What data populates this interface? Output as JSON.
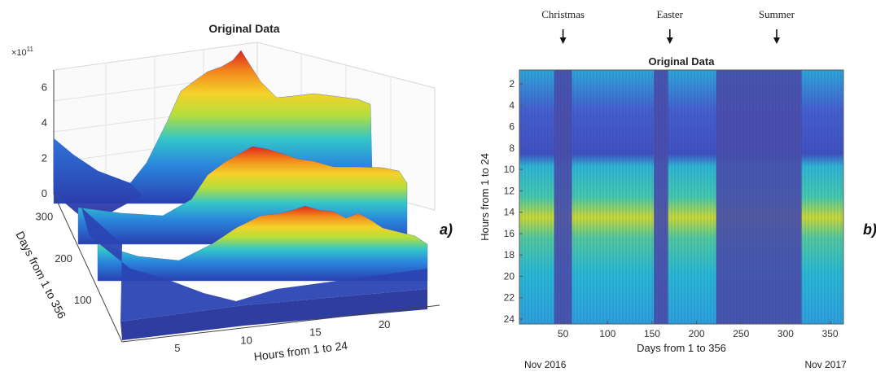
{
  "chart_data": [
    {
      "type": "surface",
      "panel_label": "a)",
      "title": "Original Data",
      "z_exponent_label": "×10",
      "z_exponent_power": "11",
      "z_ticks": [
        "0",
        "2",
        "4",
        "6"
      ],
      "x_label": "Hours from 1 to 24",
      "x_ticks": [
        "5",
        "10",
        "15",
        "20"
      ],
      "y_label": "Days from 1 to 356",
      "y_ticks": [
        "100",
        "200",
        "300"
      ],
      "xlim": [
        1,
        24
      ],
      "ylim": [
        1,
        356
      ],
      "zlim": [
        0,
        7
      ],
      "colormap": [
        "#3e26a8",
        "#1f5fd6",
        "#2ca8e0",
        "#3fd0b0",
        "#b4de3c",
        "#f5d22c",
        "#f28c1e",
        "#e12a1a"
      ],
      "grid": true
    },
    {
      "type": "heatmap",
      "panel_label": "b)",
      "title": "Original Data",
      "x_label": "Days from 1 to 356",
      "x_ticks": [
        "50",
        "100",
        "150",
        "200",
        "250",
        "300",
        "350"
      ],
      "y_label": "Hours from 1 to 24",
      "y_ticks": [
        "2",
        "4",
        "6",
        "8",
        "10",
        "12",
        "14",
        "16",
        "18",
        "20",
        "22",
        "24"
      ],
      "xlim": [
        1,
        365
      ],
      "ylim": [
        1,
        24
      ],
      "annotations": [
        {
          "text": "Christmas",
          "day": 50
        },
        {
          "text": "Easter",
          "day": 170
        },
        {
          "text": "Summer",
          "day": 290
        }
      ],
      "date_labels": [
        {
          "text": "Nov 2016",
          "day": 30
        },
        {
          "text": "Nov 2017",
          "day": 345
        }
      ],
      "low_activity_periods": [
        [
          40,
          60
        ],
        [
          152,
          168
        ],
        [
          222,
          318
        ]
      ],
      "colormap": [
        "#3e26a8",
        "#4a58d8",
        "#3a8ee8",
        "#2ac0d8",
        "#7ad070",
        "#f2e020"
      ]
    }
  ]
}
